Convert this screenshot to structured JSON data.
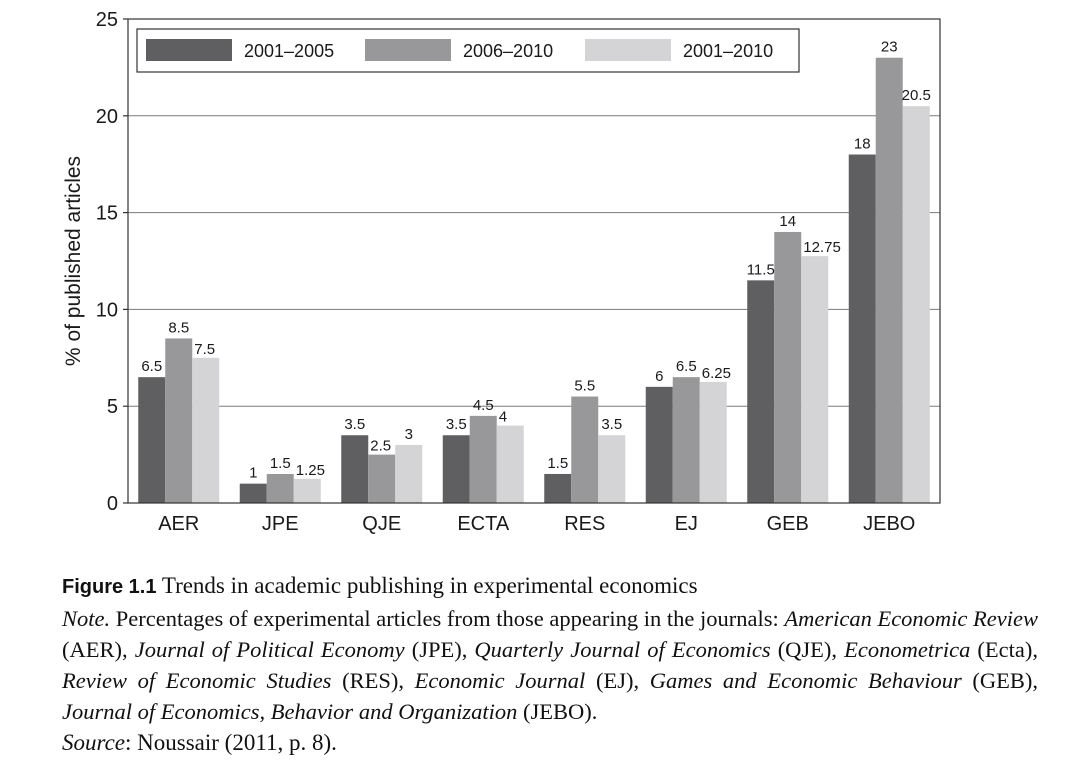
{
  "chart_data": {
    "type": "bar",
    "categories": [
      "AER",
      "JPE",
      "QJE",
      "ECTA",
      "RES",
      "EJ",
      "GEB",
      "JEBO"
    ],
    "series": [
      {
        "name": "2001–2005",
        "color": "#5f5f62",
        "values": [
          6.5,
          1,
          3.5,
          3.5,
          1.5,
          6,
          11.5,
          18
        ],
        "labels": [
          "6.5",
          "1",
          "3.5",
          "3.5",
          "1.5",
          "6",
          "11.5",
          "18"
        ]
      },
      {
        "name": "2006–2010",
        "color": "#98989b",
        "values": [
          8.5,
          1.5,
          2.5,
          4.5,
          5.5,
          6.5,
          14,
          23
        ],
        "labels": [
          "8.5",
          "1.5",
          "2.5",
          "4.5",
          "5.5",
          "6.5",
          "14",
          "23"
        ]
      },
      {
        "name": "2001–2010",
        "color": "#d4d4d6",
        "values": [
          7.5,
          1.25,
          3,
          4,
          3.5,
          6.25,
          12.75,
          20.5
        ],
        "labels": [
          "7.5",
          "1.25",
          "3",
          "4",
          "3.5",
          "6.25",
          "12.75",
          "20.5"
        ]
      }
    ],
    "ylabel": "% of published articles",
    "xlabel": "",
    "ylim": [
      0,
      25
    ],
    "yticks": [
      0,
      5,
      10,
      15,
      20,
      25
    ],
    "grid": "horizontal",
    "legend": "top-left"
  },
  "caption": {
    "figure_label": "Figure 1.1",
    "title": "Trends in academic publishing in experimental economics",
    "note_label": "Note.",
    "note_text_1": "Percentages of experimental articles from those appearing in the journals:",
    "j_aer": "American Economic Review",
    "a_aer": "(AER),",
    "j_jpe": "Journal of Political Economy",
    "a_jpe": "(JPE),",
    "j_qje": "Quarterly Journal of Economics",
    "a_qje": "(QJE),",
    "j_ecta": "Econometrica",
    "a_ecta": "(Ecta),",
    "j_res": "Review of Economic Studies",
    "a_res": "(RES),",
    "j_ej": "Economic Journal",
    "a_ej": "(EJ),",
    "j_geb": "Games and Economic Behaviour",
    "a_geb": "(GEB),",
    "j_jebo": "Journal of Economics, Behavior and Organization",
    "a_jebo": "(JEBO).",
    "source_label": "Source",
    "source_text": ": Noussair (2011, p. 8)."
  }
}
